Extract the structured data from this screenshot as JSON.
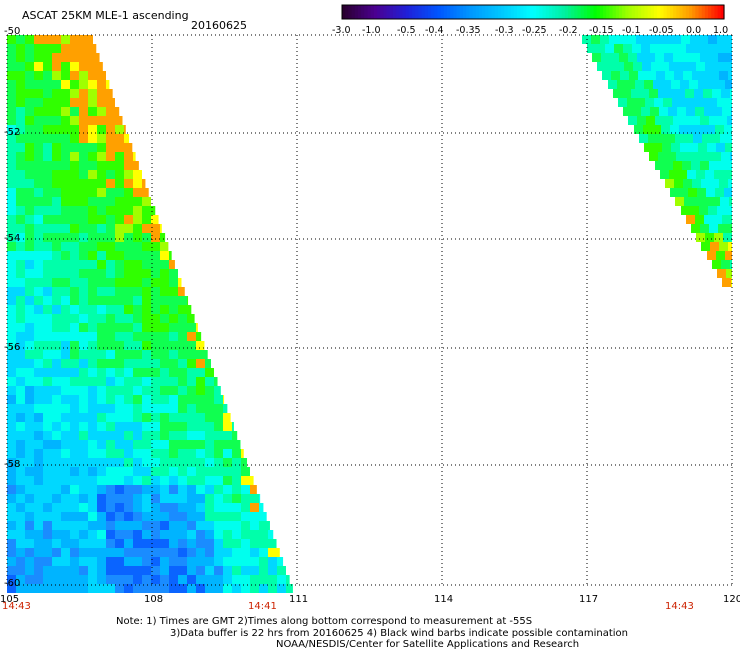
{
  "title": "ASCAT 25KM MLE-1 ascending",
  "date": "20160625",
  "map": {
    "lon_range": [
      105,
      120
    ],
    "lat_range": [
      -50,
      -60
    ],
    "lon_ticks": [
      "105",
      "108",
      "111",
      "114",
      "117",
      "120"
    ],
    "lat_ticks": [
      "-50",
      "-52",
      "-54",
      "-56",
      "-58",
      "-60"
    ],
    "grid": "dotted"
  },
  "colorbar": {
    "labels": [
      "-3.0",
      "-1.0",
      "-0.5",
      "-0.4",
      "-0.35",
      "-0.3",
      "-0.25",
      "-0.2",
      "-0.15",
      "-0.1",
      "-0.05",
      "0.0",
      "1.0"
    ],
    "colors": [
      "#2a0030",
      "#4b0090",
      "#2020d8",
      "#0055ff",
      "#0096ff",
      "#00c8ff",
      "#00ffff",
      "#00f0a0",
      "#00ff00",
      "#a0ff00",
      "#ffff00",
      "#ff9900",
      "#ff0000"
    ]
  },
  "times": {
    "left": "14:43",
    "middle": "14:41",
    "right": "14:43"
  },
  "notes": [
    "Note: 1) Times are GMT 2)Times along bottom correspond to measurement at -55S",
    "3)Data buffer is 22 hrs from 20160625 4) Black wind barbs indicate possible contamination",
    "NOAA/NESDIS/Center for Satellite Applications and Research"
  ]
}
